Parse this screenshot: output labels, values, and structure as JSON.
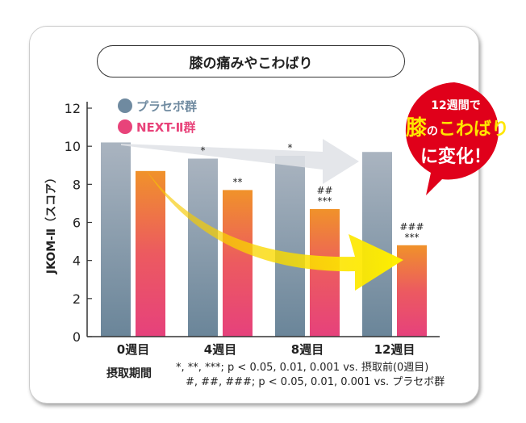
{
  "title": "膝の痛みやこわばり",
  "bubble": {
    "line1": "12週間で",
    "line2a": "膝",
    "line2b": "の",
    "line2c": "こわばり",
    "line3": "に変化！",
    "color": "#e0001a",
    "highlight": "#ffe600"
  },
  "footnotes": {
    "period_label": "摂取期間",
    "note1": "*, **, ***; p < 0.05, 0.01, 0.001 vs. 摂取前(0週目)",
    "note2": "#, ##, ###; p < 0.05, 0.01, 0.001 vs. プラセボ群"
  },
  "chart_data": {
    "type": "bar",
    "title": "膝の痛みやこわばり",
    "ylabel": "JKOM-Ⅱ（スコア）",
    "xlabel": "摂取期間",
    "ylim": [
      0,
      12
    ],
    "yticks": [
      0,
      2,
      4,
      6,
      8,
      10,
      12
    ],
    "categories": [
      "0週目",
      "4週目",
      "8週目",
      "12週目"
    ],
    "legend_position": "top-left",
    "series": [
      {
        "name": "プラセボ群",
        "values": [
          10.2,
          9.35,
          9.5,
          9.7
        ],
        "color": "#6f8aa0",
        "annotations": [
          "",
          "*",
          "*",
          ""
        ]
      },
      {
        "name": "NEXT-Ⅱ群",
        "values": [
          8.7,
          7.7,
          6.7,
          4.8
        ],
        "color": "#e8437a",
        "annotations": [
          "",
          "**",
          "##\n***",
          "###\n***"
        ]
      }
    ]
  }
}
